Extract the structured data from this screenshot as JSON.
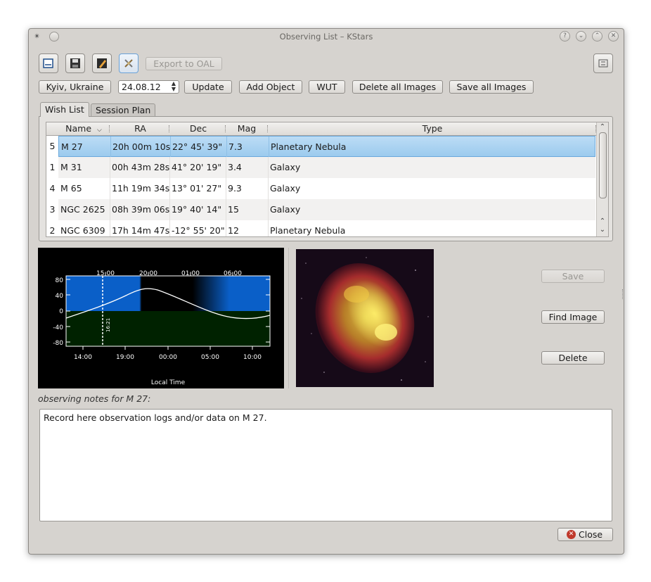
{
  "window": {
    "title": "Observing List – KStars"
  },
  "toolbar": {
    "export_oal_label": "Export to OAL",
    "location_label": "Kyiv, Ukraine",
    "date_value": "24.08.12",
    "update_label": "Update",
    "add_object_label": "Add Object",
    "wut_label": "WUT",
    "delete_images_label": "Delete all Images",
    "save_images_label": "Save all Images"
  },
  "tabs": [
    {
      "label": "Wish List"
    },
    {
      "label": "Session Plan"
    }
  ],
  "table": {
    "columns": [
      "Name",
      "RA",
      "Dec",
      "Mag",
      "Type"
    ],
    "rows": [
      {
        "index": "5",
        "name": "M 27",
        "ra": "20h 00m 10s",
        "dec": "22° 45' 39\"",
        "mag": "7.3",
        "type": "Planetary Nebula",
        "selected": true
      },
      {
        "index": "1",
        "name": "M 31",
        "ra": "00h 43m 28s",
        "dec": "41° 20' 19\"",
        "mag": "3.4",
        "type": "Galaxy"
      },
      {
        "index": "4",
        "name": "M 65",
        "ra": "11h 19m 34s",
        "dec": "13° 01' 27\"",
        "mag": "9.3",
        "type": "Galaxy"
      },
      {
        "index": "3",
        "name": "NGC 2625",
        "ra": "08h 39m 06s",
        "dec": "19° 40' 14\"",
        "mag": "15",
        "type": "Galaxy"
      },
      {
        "index": "2",
        "name": "NGC 6309",
        "ra": "17h 14m 47s",
        "dec": "-12° 55' 20\"",
        "mag": "12",
        "type": "Planetary Nebula"
      }
    ]
  },
  "altitude_plot": {
    "top_ticks": [
      "15:00",
      "20:00",
      "01:00",
      "06:00"
    ],
    "bottom_ticks": [
      "14:00",
      "19:00",
      "00:00",
      "05:00",
      "10:00"
    ],
    "y_ticks": [
      "80",
      "40",
      "0",
      "-40",
      "-80"
    ],
    "xlabel": "Local Time",
    "current_time": "16:21"
  },
  "side_buttons": {
    "save_label": "Save",
    "find_image_label": "Find Image",
    "delete_label": "Delete"
  },
  "notes": {
    "label": "observing notes for M 27:",
    "text": "Record here observation logs and/or data on M 27."
  },
  "close_label": "Close",
  "colors": {
    "selection": "#9ccbee",
    "day_sky": "#0a5fc8",
    "horizon_ground": "#002200"
  }
}
